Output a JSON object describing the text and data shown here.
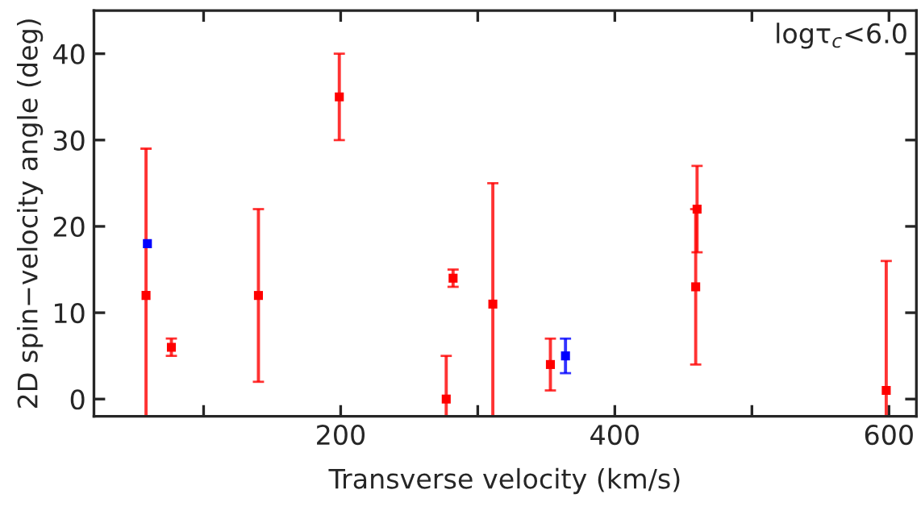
{
  "chart_data": {
    "type": "scatter",
    "xlabel": "Transverse velocity (km/s)",
    "ylabel": "2D spin−velocity angle (deg)",
    "annotations": [
      "logτ$_{c}$<6.0"
    ],
    "xlim": [
      20,
      620
    ],
    "ylim": [
      -2,
      45
    ],
    "xticks": [
      {
        "value": 100,
        "label": null
      },
      200,
      {
        "value": 300,
        "label": null
      },
      400,
      {
        "value": 500,
        "label": null
      },
      600
    ],
    "yticks": [
      0,
      10,
      20,
      30,
      40
    ],
    "marker": "square",
    "grid": false,
    "series": [
      {
        "color": "#ff0000",
        "x": [
          58,
          76.5,
          140,
          199,
          277,
          282,
          311,
          353,
          460,
          459,
          598
        ],
        "values": [
          12,
          6,
          12,
          35,
          0,
          14,
          11,
          4,
          22,
          13,
          1
        ],
        "errors": [
          [
            -2,
            29
          ],
          [
            5,
            7
          ],
          [
            2,
            22
          ],
          [
            30,
            40
          ],
          [
            -2,
            5
          ],
          [
            13,
            15
          ],
          [
            -2,
            25
          ],
          [
            1,
            7
          ],
          [
            17,
            27
          ],
          [
            4,
            22
          ],
          [
            -2,
            16
          ]
        ]
      },
      {
        "color": "#0000ff",
        "x": [
          59,
          364
        ],
        "values": [
          18,
          5
        ],
        "errors": [
          null,
          [
            3,
            7
          ]
        ]
      }
    ]
  }
}
